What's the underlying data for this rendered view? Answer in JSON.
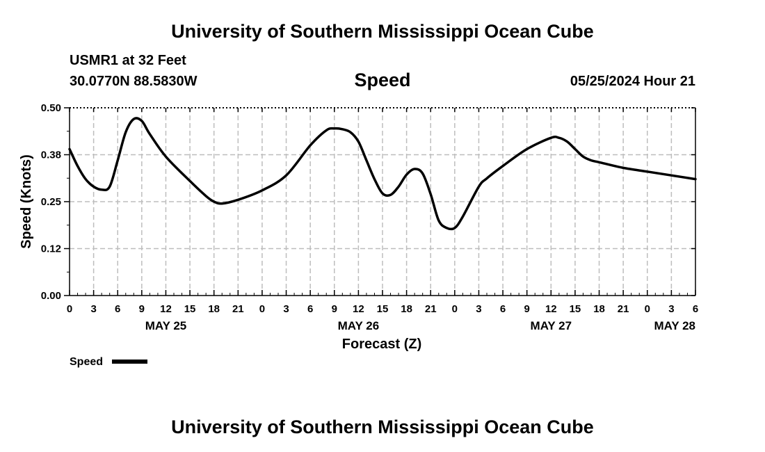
{
  "header": {
    "title": "University of Southern Mississippi Ocean Cube",
    "station": "USMR1 at 32 Feet",
    "coords": "30.0770N  88.5830W",
    "subtitle": "Speed",
    "datetime": "05/25/2024 Hour 21"
  },
  "footer": {
    "title": "University of Southern Mississippi Ocean Cube"
  },
  "legend": {
    "label": "Speed",
    "color": "#000000"
  },
  "chart_data": {
    "type": "line",
    "title": "Speed",
    "xlabel": "Forecast (Z)",
    "ylabel": "Speed (Knots)",
    "ylim": [
      0,
      0.5
    ],
    "xlim": [
      "2024-05-25T00:00Z",
      "2024-05-28T06:00Z"
    ],
    "grid": true,
    "legend_position": "bottom-left",
    "y_ticks": [
      "0.00",
      "0.12",
      "0.25",
      "0.38",
      "0.50"
    ],
    "x_tick_labels": [
      "0",
      "3",
      "6",
      "9",
      "12",
      "15",
      "18",
      "21",
      "0",
      "3",
      "6",
      "9",
      "12",
      "15",
      "18",
      "21",
      "0",
      "3",
      "6",
      "9",
      "12",
      "15",
      "18",
      "21",
      "0",
      "3",
      "6"
    ],
    "date_labels": [
      {
        "label": "MAY 25",
        "at": "2024-05-25T12:00Z"
      },
      {
        "label": "MAY 26",
        "at": "2024-05-26T12:00Z"
      },
      {
        "label": "MAY 27",
        "at": "2024-05-27T12:00Z"
      },
      {
        "label": "MAY 28",
        "at": "2024-05-28T06:00Z"
      }
    ],
    "series": [
      {
        "name": "Speed",
        "color": "#000000",
        "x": [
          "2024-05-25T00:00Z",
          "2024-05-25T01:00Z",
          "2024-05-25T02:00Z",
          "2024-05-25T03:00Z",
          "2024-05-25T04:00Z",
          "2024-05-25T05:00Z",
          "2024-05-25T06:00Z",
          "2024-05-25T07:00Z",
          "2024-05-25T08:00Z",
          "2024-05-25T09:00Z",
          "2024-05-25T10:00Z",
          "2024-05-25T12:00Z",
          "2024-05-25T15:00Z",
          "2024-05-25T17:00Z",
          "2024-05-25T18:00Z",
          "2024-05-25T19:00Z",
          "2024-05-25T21:00Z",
          "2024-05-26T00:00Z",
          "2024-05-26T03:00Z",
          "2024-05-26T06:00Z",
          "2024-05-26T08:00Z",
          "2024-05-26T09:00Z",
          "2024-05-26T10:00Z",
          "2024-05-26T11:00Z",
          "2024-05-26T12:00Z",
          "2024-05-26T13:00Z",
          "2024-05-26T14:00Z",
          "2024-05-26T15:00Z",
          "2024-05-26T16:00Z",
          "2024-05-26T17:00Z",
          "2024-05-26T18:00Z",
          "2024-05-26T19:00Z",
          "2024-05-26T20:00Z",
          "2024-05-26T21:00Z",
          "2024-05-26T22:00Z",
          "2024-05-26T23:00Z",
          "2024-05-27T00:00Z",
          "2024-05-27T01:00Z",
          "2024-05-27T03:00Z",
          "2024-05-27T04:00Z",
          "2024-05-27T06:00Z",
          "2024-05-27T09:00Z",
          "2024-05-27T12:00Z",
          "2024-05-27T13:00Z",
          "2024-05-27T14:00Z",
          "2024-05-27T15:00Z",
          "2024-05-27T16:00Z",
          "2024-05-27T17:00Z",
          "2024-05-27T18:00Z",
          "2024-05-27T21:00Z",
          "2024-05-28T00:00Z",
          "2024-05-28T03:00Z",
          "2024-05-28T06:00Z"
        ],
        "y": [
          0.39,
          0.345,
          0.31,
          0.29,
          0.282,
          0.29,
          0.36,
          0.435,
          0.47,
          0.465,
          0.43,
          0.37,
          0.305,
          0.265,
          0.25,
          0.245,
          0.255,
          0.28,
          0.32,
          0.4,
          0.44,
          0.445,
          0.443,
          0.435,
          0.41,
          0.36,
          0.31,
          0.272,
          0.268,
          0.29,
          0.322,
          0.337,
          0.325,
          0.27,
          0.2,
          0.18,
          0.18,
          0.21,
          0.29,
          0.312,
          0.345,
          0.39,
          0.42,
          0.42,
          0.41,
          0.39,
          0.37,
          0.36,
          0.355,
          0.34,
          0.33,
          0.32,
          0.31
        ]
      }
    ]
  }
}
